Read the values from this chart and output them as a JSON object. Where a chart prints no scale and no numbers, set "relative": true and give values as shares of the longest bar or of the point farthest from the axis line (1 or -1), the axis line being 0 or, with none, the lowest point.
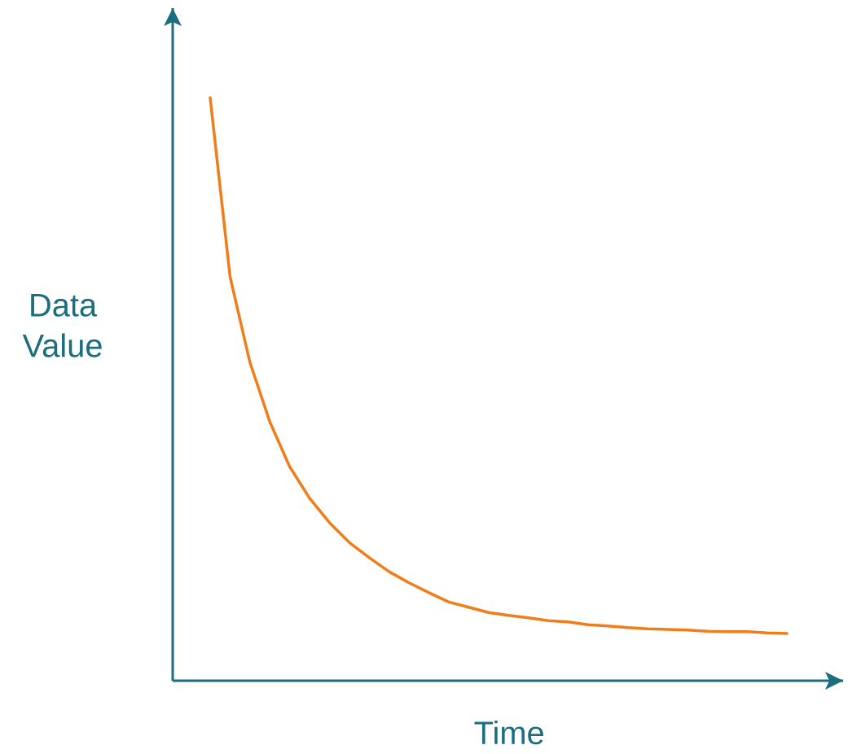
{
  "chart_data": {
    "type": "line",
    "relative": true,
    "xlabel": "Time",
    "ylabel": "Data Value",
    "categories": [
      null,
      null,
      null,
      null,
      null,
      null,
      null,
      null,
      null,
      null,
      null,
      null,
      null,
      null,
      null,
      null,
      null,
      null,
      null,
      null,
      null,
      null,
      null,
      null,
      null,
      null,
      null,
      null,
      null,
      null
    ],
    "series": [
      {
        "color": "#f07c1a",
        "values": [
          1.0,
          0.693,
          0.546,
          0.444,
          0.367,
          0.313,
          0.271,
          0.237,
          0.211,
          0.187,
          0.168,
          0.151,
          0.135,
          0.126,
          0.117,
          0.112,
          0.108,
          0.103,
          0.101,
          0.096,
          0.094,
          0.091,
          0.089,
          0.088,
          0.087,
          0.085,
          0.084,
          0.084,
          0.082,
          0.081
        ]
      }
    ]
  }
}
